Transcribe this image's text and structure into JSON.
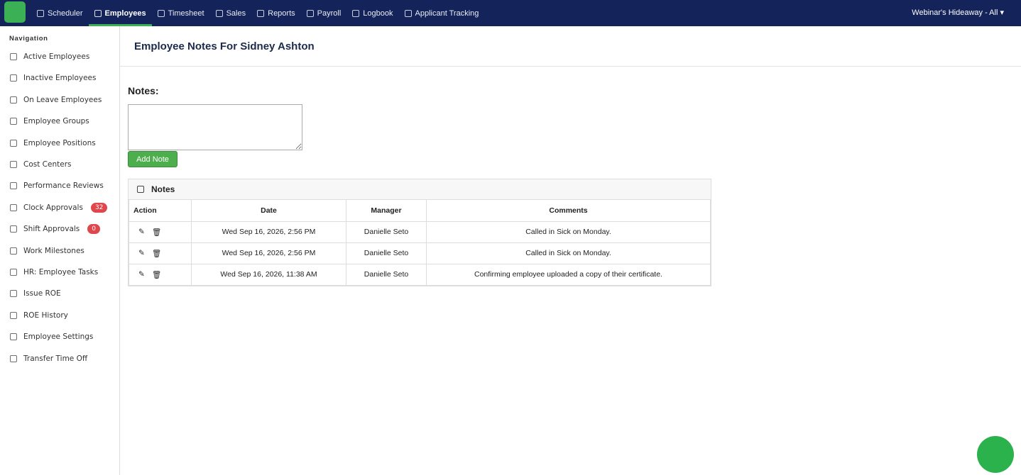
{
  "topbar": {
    "nav": [
      "Scheduler",
      "Employees",
      "Timesheet",
      "Sales",
      "Reports",
      "Payroll",
      "Logbook",
      "Applicant Tracking"
    ],
    "active": "Employees",
    "location": "Webinar's Hideaway - All"
  },
  "sidebar": {
    "heading": "Navigation",
    "items": [
      {
        "label": "Active Employees"
      },
      {
        "label": "Inactive Employees"
      },
      {
        "label": "On Leave Employees"
      },
      {
        "label": "Employee Groups"
      },
      {
        "label": "Employee Positions"
      },
      {
        "label": "Cost Centers"
      },
      {
        "label": "Performance Reviews"
      },
      {
        "label": "Clock Approvals",
        "badge": 32
      },
      {
        "label": "Shift Approvals",
        "badge": 0
      },
      {
        "label": "Work Milestones"
      },
      {
        "label": "HR: Employee Tasks"
      },
      {
        "label": "Issue ROE"
      },
      {
        "label": "ROE History"
      },
      {
        "label": "Employee Settings"
      },
      {
        "label": "Transfer Time Off"
      }
    ]
  },
  "page": {
    "title": "Employee Notes For Sidney Ashton",
    "notes_label": "Notes:",
    "button": "Add Note"
  },
  "table": {
    "title": "Notes",
    "headers": [
      "Action",
      "Date",
      "Manager",
      "Comments"
    ],
    "rows": [
      [
        "Wed Sep 16, 2026, 2:56 PM",
        "Danielle Seto",
        "Called in Sick on Monday."
      ],
      [
        "Wed Sep 16, 2026, 2:56 PM",
        "Danielle Seto",
        "Called in Sick on Monday."
      ],
      [
        "Wed Sep 16, 2026, 11:38 AM",
        "Danielle Seto",
        "Confirming employee uploaded a copy of their certificate."
      ]
    ]
  }
}
